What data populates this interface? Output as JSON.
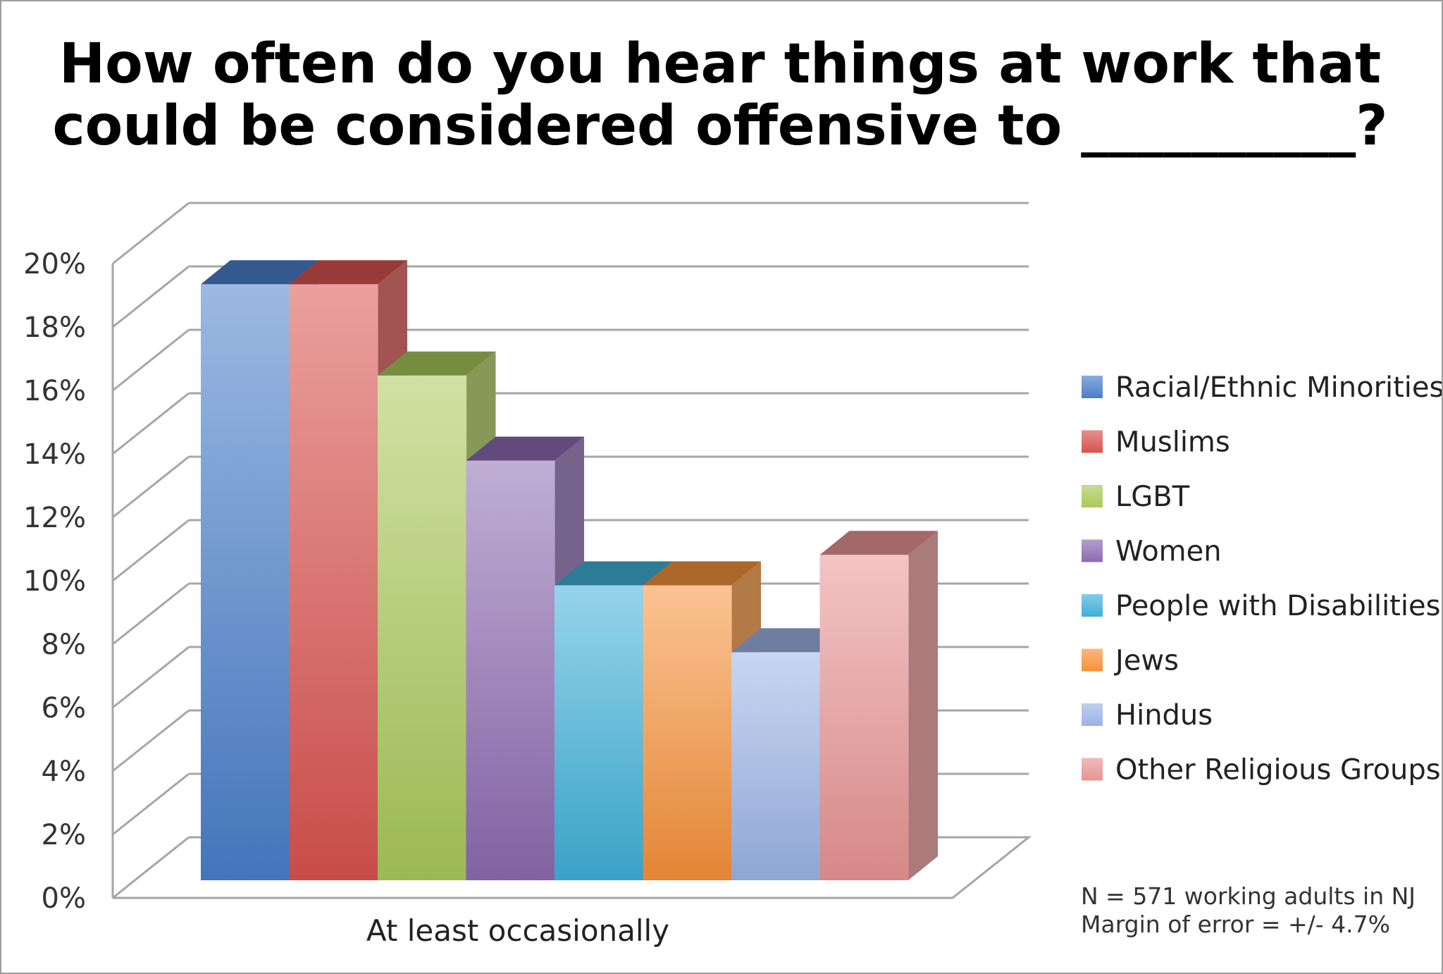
{
  "chart_data": {
    "type": "bar",
    "style": "3d-clustered-column",
    "title_lines": [
      "How often do you hear things at work that",
      "could be considered offensive to __________?"
    ],
    "categories": [
      "At least occasionally"
    ],
    "series": [
      {
        "name": "Racial/Ethnic Minorities",
        "values": [
          19.6
        ],
        "color": "#4a7fcb"
      },
      {
        "name": "Muslims",
        "values": [
          19.6
        ],
        "color": "#d9534f"
      },
      {
        "name": "LGBT",
        "values": [
          16.6
        ],
        "color": "#a9c95a"
      },
      {
        "name": "Women",
        "values": [
          13.8
        ],
        "color": "#8c6bb1"
      },
      {
        "name": "People with Disabilities",
        "values": [
          9.7
        ],
        "color": "#3fb0d8"
      },
      {
        "name": "Jews",
        "values": [
          9.7
        ],
        "color": "#f7923a"
      },
      {
        "name": "Hindus",
        "values": [
          7.5
        ],
        "color": "#9bb4e6"
      },
      {
        "name": "Other Religious Groups",
        "values": [
          10.7
        ],
        "color": "#e99494"
      }
    ],
    "ylim": [
      0,
      20
    ],
    "yticks": [
      "0%",
      "2%",
      "4%",
      "6%",
      "8%",
      "10%",
      "12%",
      "14%",
      "16%",
      "18%",
      "20%"
    ],
    "grid": true,
    "legend_position": "right",
    "notes": [
      "N = 571 working adults in NJ",
      "Margin of error = +/- 4.7%"
    ]
  }
}
